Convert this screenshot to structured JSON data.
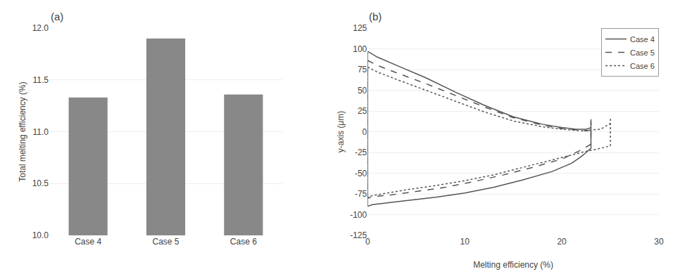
{
  "chart_data": [
    {
      "type": "bar",
      "title": "(a)",
      "categories": [
        "Case 4",
        "Case 5",
        "Case 6"
      ],
      "values": [
        11.33,
        11.9,
        11.36
      ],
      "color": "#888888",
      "ylabel": "Total melting efficiency (%)",
      "ylim": [
        10,
        12
      ],
      "yticks": [
        {
          "value": 10,
          "label": "10.0"
        },
        10.5,
        {
          "value": 11,
          "label": "11.0"
        },
        11.5,
        {
          "value": 12,
          "label": "12.0"
        }
      ],
      "grid": true
    },
    {
      "type": "line",
      "title": "(b)",
      "xlabel": "Melting efficiency (%)",
      "ylabel": "y-axis (μm)",
      "xlim": [
        0,
        30
      ],
      "ylim": [
        -125,
        125
      ],
      "xticks": [
        0,
        10,
        20,
        30
      ],
      "yticks": [
        -125,
        -100,
        -75,
        -50,
        -25,
        0,
        25,
        50,
        75,
        100,
        125
      ],
      "grid": true,
      "legend": "upper right",
      "series": [
        {
          "name": "Case 4",
          "color": "#555555",
          "line_style": "solid",
          "x": [
            0.0,
            1.0,
            3.0,
            6.0,
            9.0,
            12.0,
            15.0,
            18.0,
            20.0,
            21.5,
            22.5,
            23.0,
            23.0,
            23.0,
            22.5,
            22.0,
            21.0,
            19.0,
            16.0,
            13.0,
            10.0,
            7.0,
            4.0,
            2.0,
            0.5,
            0.0,
            0.0
          ],
          "values": [
            97,
            90,
            80,
            65,
            48,
            32,
            18,
            9,
            5,
            3,
            3,
            5,
            15,
            -20,
            -25,
            -30,
            -38,
            -48,
            -58,
            -67,
            -74,
            -79,
            -83,
            -86,
            -88,
            -90,
            97
          ]
        },
        {
          "name": "Case 5",
          "color": "#555555",
          "line_style": "dashed",
          "x": [
            0.0,
            1.0,
            3.0,
            6.0,
            9.0,
            12.0,
            15.0,
            18.0,
            20.0,
            21.5,
            22.5,
            23.0,
            23.0,
            23.0,
            22.0,
            20.0,
            17.0,
            14.0,
            11.0,
            8.0,
            5.0,
            2.5,
            0.8,
            0.0,
            0.0
          ],
          "values": [
            86,
            80,
            71,
            58,
            44,
            30,
            17,
            8,
            4,
            2,
            1,
            2,
            12,
            -15,
            -22,
            -33,
            -43,
            -52,
            -60,
            -67,
            -72,
            -76,
            -78,
            -80,
            86
          ]
        },
        {
          "name": "Case 6",
          "color": "#555555",
          "line_style": "dotted",
          "x": [
            0.0,
            1.0,
            3.0,
            6.0,
            9.0,
            12.0,
            15.0,
            18.0,
            20.0,
            22.0,
            24.0,
            25.0,
            25.0,
            25.0,
            24.0,
            22.0,
            19.0,
            16.0,
            13.0,
            10.0,
            7.0,
            4.0,
            2.0,
            0.5,
            0.0,
            0.0
          ],
          "values": [
            78,
            72,
            63,
            50,
            37,
            24,
            13,
            6,
            3,
            1,
            3,
            10,
            17,
            -17,
            -20,
            -25,
            -34,
            -43,
            -52,
            -59,
            -65,
            -70,
            -74,
            -77,
            -79,
            78
          ]
        }
      ]
    }
  ]
}
